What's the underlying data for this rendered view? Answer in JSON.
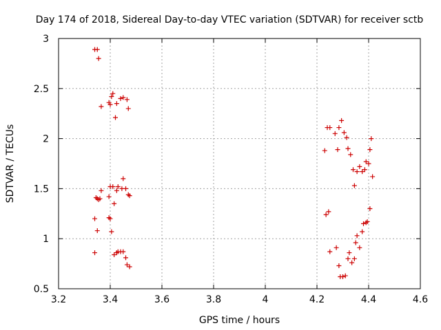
{
  "chart_data": {
    "type": "scatter",
    "title": "Day 174 of 2018, Sidereal Day-to-day VTEC variation (SDTVAR) for receiver sctb",
    "xlabel": "GPS time / hours",
    "ylabel": "SDTVAR / TECUs",
    "xlim": [
      3.2,
      4.6
    ],
    "ylim": [
      0.5,
      3.0
    ],
    "xticks": [
      3.2,
      3.4,
      3.6,
      3.8,
      4.0,
      4.2,
      4.4,
      4.6
    ],
    "yticks": [
      0.5,
      1.0,
      1.5,
      2.0,
      2.5,
      3.0
    ],
    "xtick_labels": [
      "3.2",
      "3.4",
      "3.6",
      "3.8",
      "4",
      "4.2",
      "4.4",
      "4.6"
    ],
    "ytick_labels": [
      "0.5",
      "1",
      "1.5",
      "2",
      "2.5",
      "3"
    ],
    "grid": true,
    "marker": "+",
    "color": "#cc0000",
    "series": [
      {
        "name": "SDTVAR",
        "points": [
          [
            3.34,
            2.89
          ],
          [
            3.35,
            2.89
          ],
          [
            3.355,
            2.8
          ],
          [
            3.345,
            1.41
          ],
          [
            3.35,
            1.4
          ],
          [
            3.355,
            1.39
          ],
          [
            3.36,
            1.4
          ],
          [
            3.365,
            1.48
          ],
          [
            3.34,
            1.2
          ],
          [
            3.35,
            1.08
          ],
          [
            3.34,
            0.86
          ],
          [
            3.365,
            2.32
          ],
          [
            3.395,
            2.36
          ],
          [
            3.4,
            2.34
          ],
          [
            3.405,
            2.42
          ],
          [
            3.41,
            2.45
          ],
          [
            3.42,
            2.21
          ],
          [
            3.425,
            2.35
          ],
          [
            3.44,
            2.4
          ],
          [
            3.45,
            2.41
          ],
          [
            3.465,
            2.39
          ],
          [
            3.47,
            2.3
          ],
          [
            3.395,
            1.42
          ],
          [
            3.4,
            1.52
          ],
          [
            3.41,
            1.52
          ],
          [
            3.415,
            1.35
          ],
          [
            3.425,
            1.48
          ],
          [
            3.43,
            1.52
          ],
          [
            3.445,
            1.5
          ],
          [
            3.45,
            1.6
          ],
          [
            3.46,
            1.5
          ],
          [
            3.47,
            1.44
          ],
          [
            3.475,
            1.43
          ],
          [
            3.395,
            1.21
          ],
          [
            3.4,
            1.2
          ],
          [
            3.405,
            1.07
          ],
          [
            3.415,
            0.84
          ],
          [
            3.425,
            0.86
          ],
          [
            3.43,
            0.87
          ],
          [
            3.44,
            0.87
          ],
          [
            3.45,
            0.87
          ],
          [
            3.46,
            0.81
          ],
          [
            3.465,
            0.74
          ],
          [
            3.475,
            0.72
          ],
          [
            4.23,
            1.88
          ],
          [
            4.24,
            2.11
          ],
          [
            4.25,
            2.11
          ],
          [
            4.27,
            2.05
          ],
          [
            4.28,
            1.89
          ],
          [
            4.285,
            2.11
          ],
          [
            4.295,
            2.18
          ],
          [
            4.305,
            2.06
          ],
          [
            4.315,
            2.01
          ],
          [
            4.32,
            1.9
          ],
          [
            4.33,
            1.84
          ],
          [
            4.34,
            1.69
          ],
          [
            4.345,
            1.53
          ],
          [
            4.355,
            1.67
          ],
          [
            4.365,
            1.72
          ],
          [
            4.375,
            1.67
          ],
          [
            4.385,
            1.69
          ],
          [
            4.39,
            1.77
          ],
          [
            4.4,
            1.75
          ],
          [
            4.405,
            1.89
          ],
          [
            4.41,
            2.0
          ],
          [
            4.415,
            1.62
          ],
          [
            4.235,
            1.24
          ],
          [
            4.245,
            1.27
          ],
          [
            4.25,
            0.87
          ],
          [
            4.275,
            0.91
          ],
          [
            4.285,
            0.73
          ],
          [
            4.29,
            0.62
          ],
          [
            4.3,
            0.62
          ],
          [
            4.31,
            0.63
          ],
          [
            4.32,
            0.8
          ],
          [
            4.325,
            0.86
          ],
          [
            4.335,
            0.76
          ],
          [
            4.345,
            0.8
          ],
          [
            4.35,
            0.96
          ],
          [
            4.355,
            1.03
          ],
          [
            4.365,
            0.91
          ],
          [
            4.375,
            1.07
          ],
          [
            4.38,
            1.15
          ],
          [
            4.39,
            1.16
          ],
          [
            4.395,
            1.17
          ],
          [
            4.405,
            1.3
          ]
        ]
      }
    ]
  }
}
